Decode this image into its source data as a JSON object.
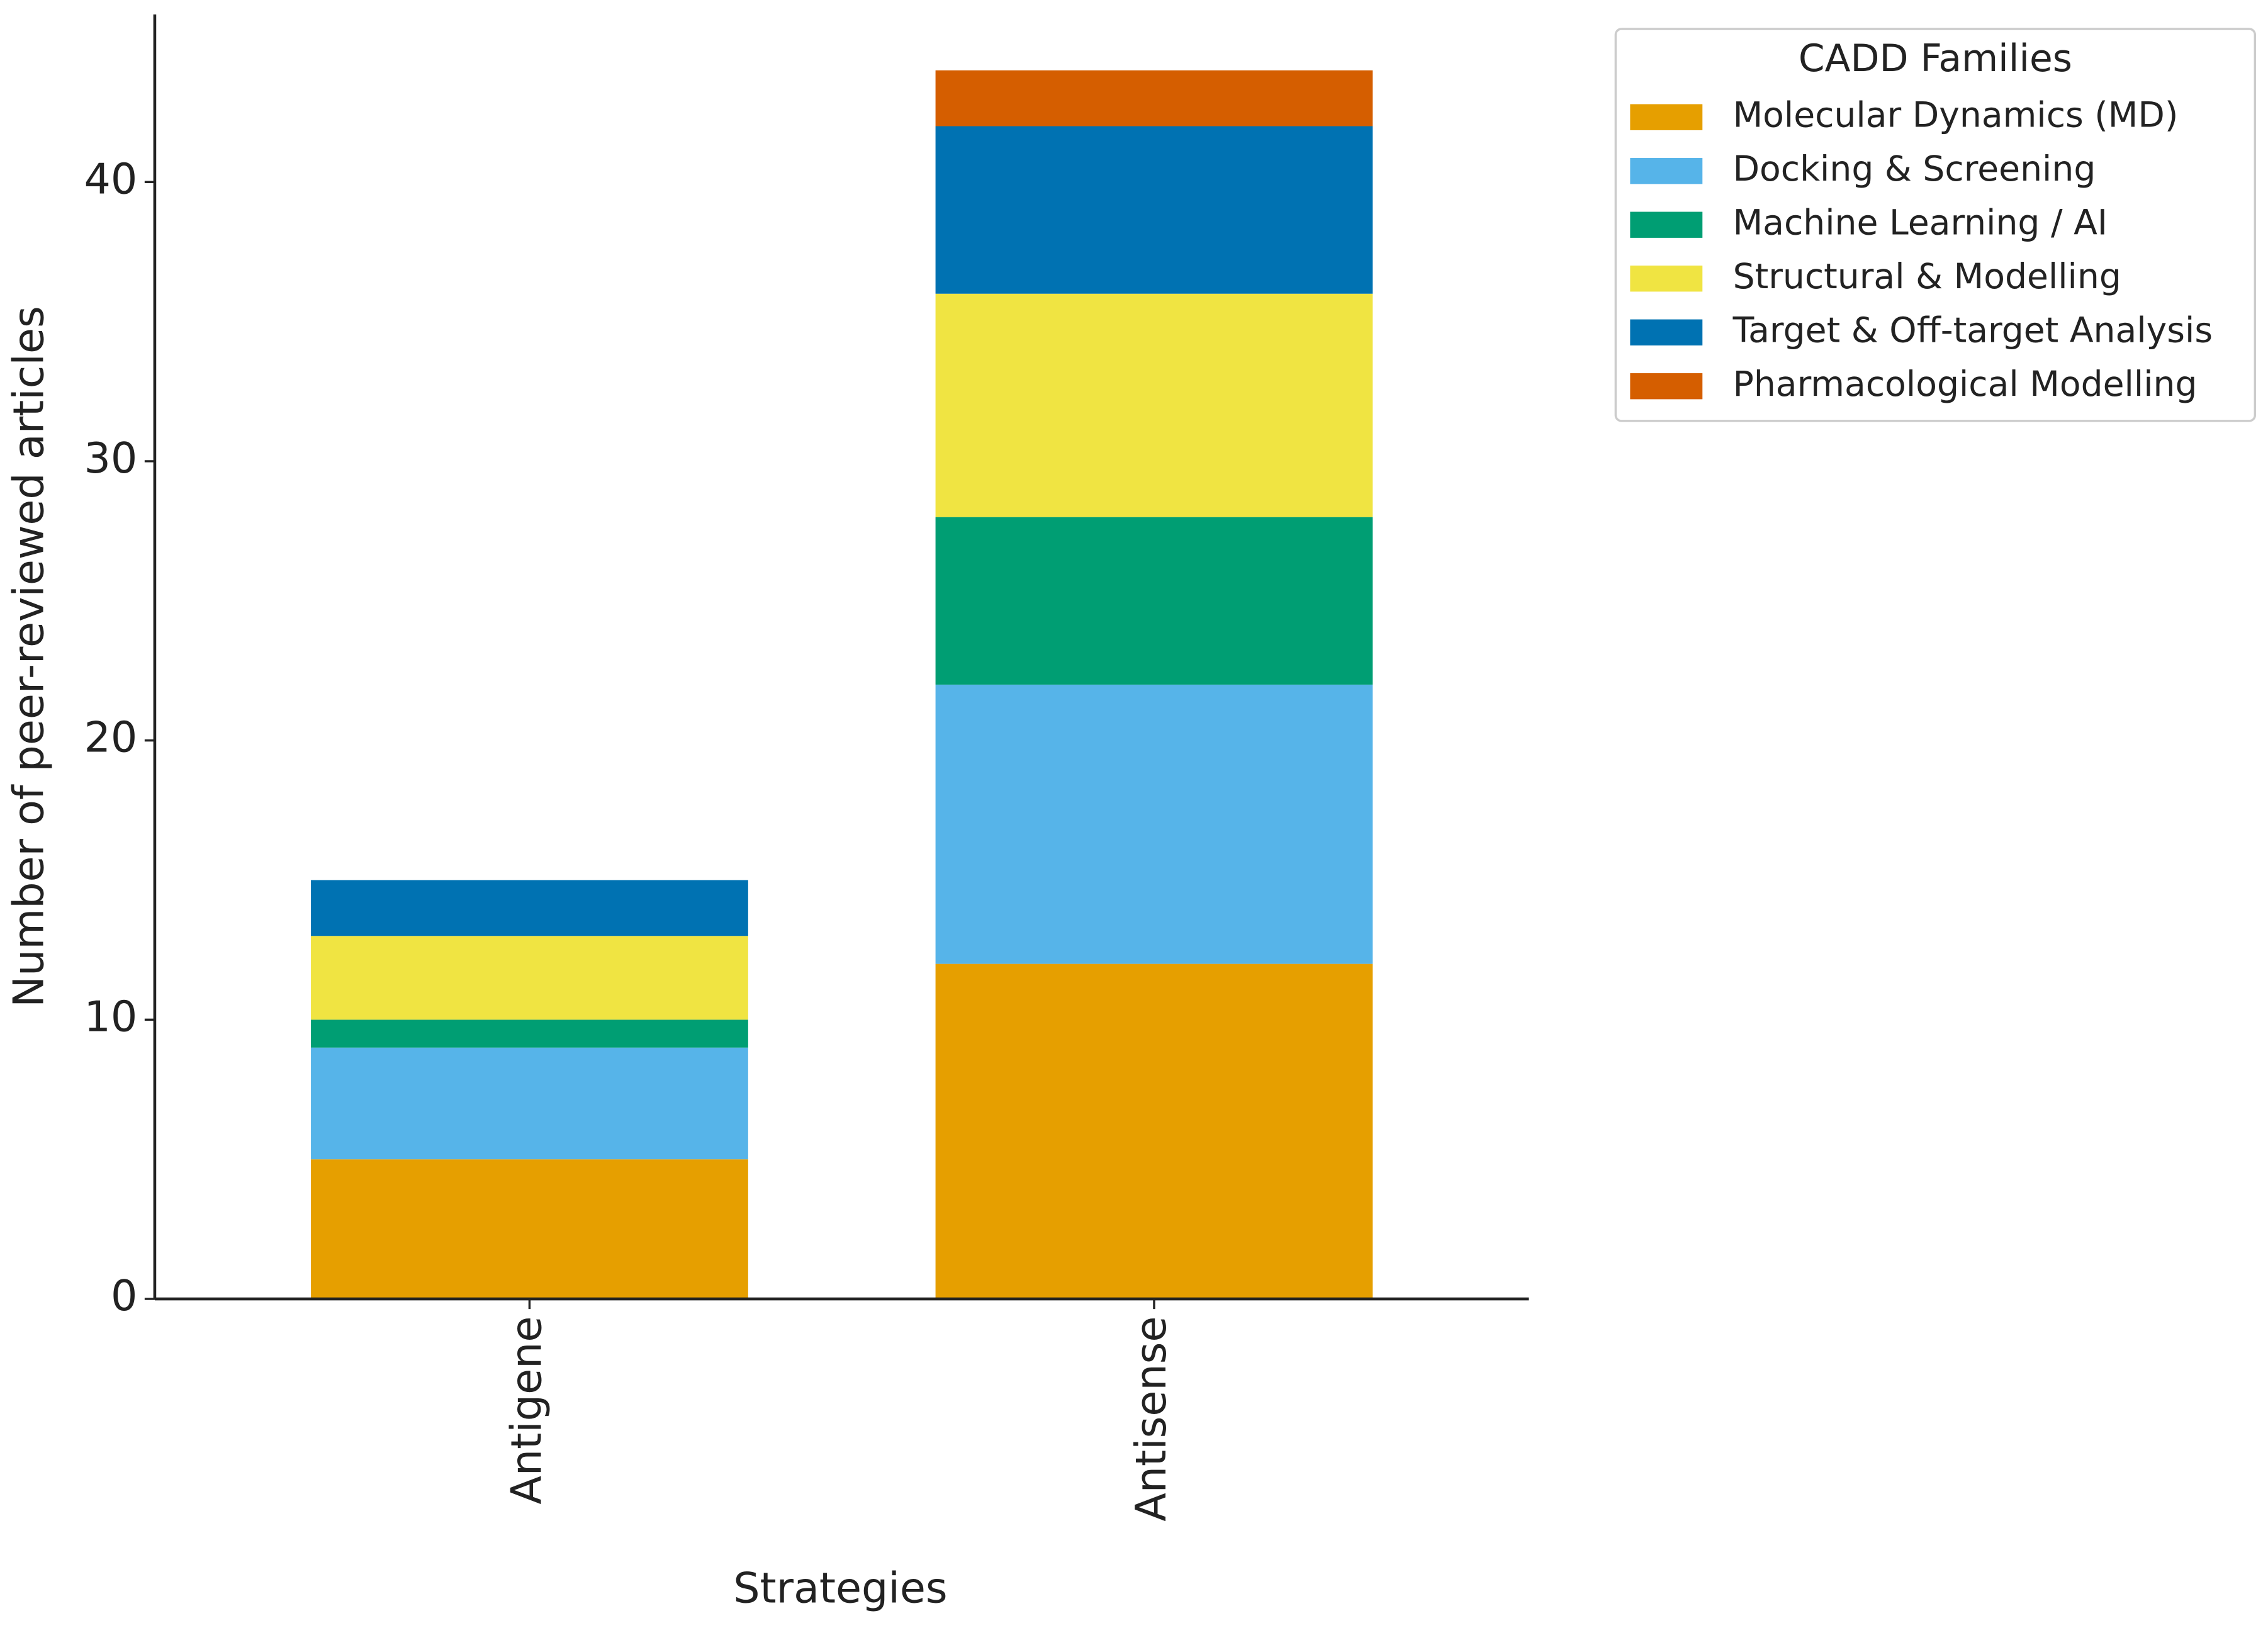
{
  "chart_data": {
    "type": "stacked-bar",
    "x_label": "Strategies",
    "y_label": "Number of peer-reviewed articles",
    "categories": [
      "Antigene",
      "Antisense"
    ],
    "series": [
      {
        "name": "Molecular Dynamics (MD)",
        "color": "#E69F00",
        "values": [
          5,
          12
        ]
      },
      {
        "name": "Docking & Screening",
        "color": "#56B4E9",
        "values": [
          4,
          10
        ]
      },
      {
        "name": "Machine Learning / AI",
        "color": "#009E73",
        "values": [
          1,
          6
        ]
      },
      {
        "name": "Structural & Modelling",
        "color": "#F0E442",
        "values": [
          3,
          8
        ]
      },
      {
        "name": "Target & Off-target Analysis",
        "color": "#0072B2",
        "values": [
          2,
          6
        ]
      },
      {
        "name": "Pharmacological Modelling",
        "color": "#D55E00",
        "values": [
          0,
          2
        ]
      }
    ],
    "ylim": [
      0,
      46
    ],
    "yticks": [
      0,
      10,
      20,
      30,
      40
    ],
    "legend_title": "CADD Families",
    "legend_position": "outside upper right",
    "grid": false
  }
}
